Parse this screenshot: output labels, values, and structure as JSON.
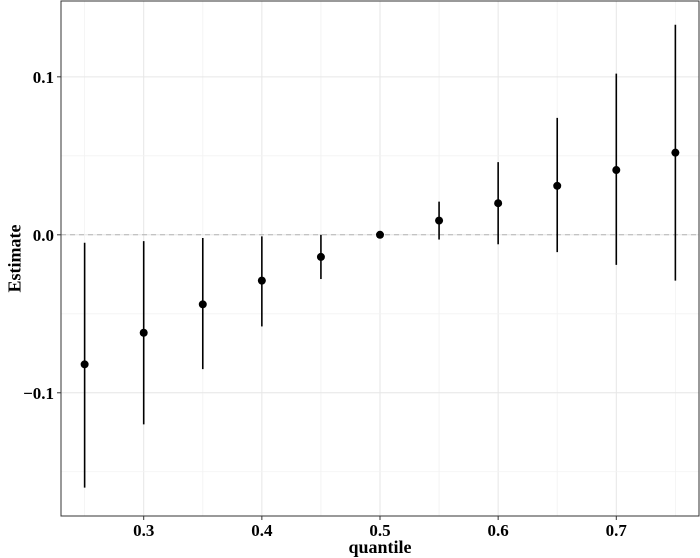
{
  "chart_data": {
    "type": "scatter",
    "title": "",
    "xlabel": "quantile",
    "ylabel": "Estimate",
    "xlim": [
      0.23,
      0.77
    ],
    "ylim": [
      -0.178,
      0.148
    ],
    "x_ticks": [
      0.3,
      0.4,
      0.5,
      0.6,
      0.7
    ],
    "x_tick_labels": [
      "0.3",
      "0.4",
      "0.5",
      "0.6",
      "0.7"
    ],
    "y_ticks": [
      -0.1,
      0.0,
      0.1
    ],
    "y_tick_labels": [
      "−0.1",
      "0.0",
      "0.1"
    ],
    "grid": true,
    "reference_line": {
      "y": 0,
      "style": "dashed"
    },
    "points": [
      {
        "x": 0.25,
        "y": -0.082,
        "lower": -0.16,
        "upper": -0.005
      },
      {
        "x": 0.3,
        "y": -0.062,
        "lower": -0.12,
        "upper": -0.004
      },
      {
        "x": 0.35,
        "y": -0.044,
        "lower": -0.085,
        "upper": -0.002
      },
      {
        "x": 0.4,
        "y": -0.029,
        "lower": -0.058,
        "upper": -0.001
      },
      {
        "x": 0.45,
        "y": -0.014,
        "lower": -0.028,
        "upper": 0.0
      },
      {
        "x": 0.5,
        "y": 0.0,
        "lower": 0.0,
        "upper": 0.0
      },
      {
        "x": 0.55,
        "y": 0.009,
        "lower": -0.003,
        "upper": 0.021
      },
      {
        "x": 0.6,
        "y": 0.02,
        "lower": -0.006,
        "upper": 0.046
      },
      {
        "x": 0.65,
        "y": 0.031,
        "lower": -0.011,
        "upper": 0.074
      },
      {
        "x": 0.7,
        "y": 0.041,
        "lower": -0.019,
        "upper": 0.102
      },
      {
        "x": 0.75,
        "y": 0.052,
        "lower": -0.029,
        "upper": 0.133
      }
    ]
  }
}
